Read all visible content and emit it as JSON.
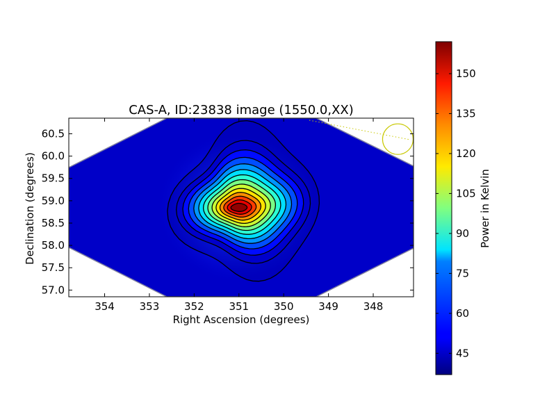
{
  "chart_data": {
    "type": "heatmap",
    "title": "CAS-A, ID:23838 image (1550.0,XX)",
    "xlabel": "Right Ascension (degrees)",
    "ylabel": "Declination (degrees)",
    "x_ticks": [
      "354",
      "353",
      "352",
      "351",
      "350",
      "349",
      "348"
    ],
    "y_ticks": [
      "57.0",
      "57.5",
      "58.0",
      "58.5",
      "59.0",
      "59.5",
      "60.0",
      "60.5"
    ],
    "xlim": [
      354.8,
      347.1
    ],
    "ylim": [
      56.85,
      60.85
    ],
    "source": {
      "ra_peak": 350.95,
      "dec_peak": 58.85,
      "peak_value": 160,
      "background_value": 40
    },
    "contours": 14,
    "beam_marker": {
      "ra": 347.45,
      "dec": 60.38
    },
    "colorbar": {
      "label": "Power in Kelvin",
      "min": 37,
      "max": 162,
      "ticks": [
        "45",
        "60",
        "75",
        "90",
        "105",
        "120",
        "135",
        "150"
      ],
      "colormap": "jet"
    },
    "colors": {
      "contour": "#000000",
      "beam_marker": "#c8c800",
      "background_field": "#0000c0"
    }
  }
}
